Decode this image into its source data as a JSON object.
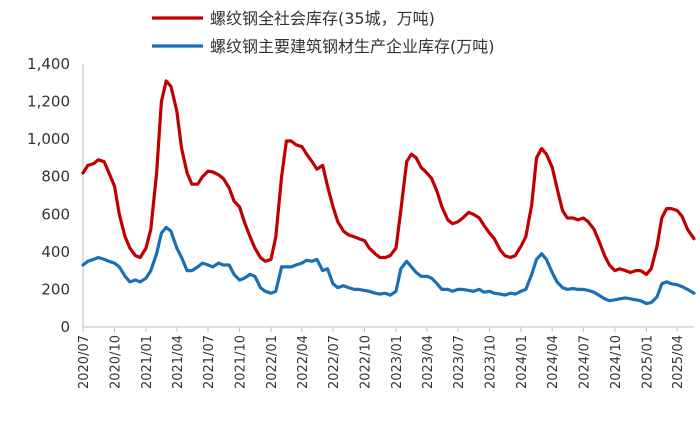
{
  "chart_data": {
    "type": "line",
    "ylim": [
      0,
      1400
    ],
    "yticks": [
      "0",
      "200",
      "400",
      "600",
      "800",
      "1,000",
      "1,200",
      "1,400"
    ],
    "xticks": [
      "2020/07",
      "2020/10",
      "2021/01",
      "2021/04",
      "2021/07",
      "2021/10",
      "2022/01",
      "2022/04",
      "2022/07",
      "2022/10",
      "2023/01",
      "2023/04",
      "2023/07",
      "2023/10",
      "2024/01",
      "2024/04",
      "2024/07",
      "2024/10",
      "2025/01",
      "2025/04"
    ],
    "xlim": [
      "2020-07-01",
      "2025-05-20"
    ],
    "grid": false,
    "legend_position": "top",
    "series": [
      {
        "name": "螺纹钢全社会库存(35城，万吨)",
        "color": "#C00000",
        "points": [
          [
            "2020-07-01",
            820
          ],
          [
            "2020-07-15",
            860
          ],
          [
            "2020-08-01",
            870
          ],
          [
            "2020-08-15",
            890
          ],
          [
            "2020-09-01",
            880
          ],
          [
            "2020-09-15",
            820
          ],
          [
            "2020-10-01",
            750
          ],
          [
            "2020-10-15",
            600
          ],
          [
            "2020-11-01",
            480
          ],
          [
            "2020-11-15",
            420
          ],
          [
            "2020-12-01",
            380
          ],
          [
            "2020-12-15",
            370
          ],
          [
            "2021-01-01",
            420
          ],
          [
            "2021-01-15",
            520
          ],
          [
            "2021-02-01",
            820
          ],
          [
            "2021-02-15",
            1200
          ],
          [
            "2021-03-01",
            1310
          ],
          [
            "2021-03-15",
            1280
          ],
          [
            "2021-04-01",
            1150
          ],
          [
            "2021-04-15",
            950
          ],
          [
            "2021-05-01",
            820
          ],
          [
            "2021-05-15",
            760
          ],
          [
            "2021-06-01",
            760
          ],
          [
            "2021-06-15",
            800
          ],
          [
            "2021-07-01",
            830
          ],
          [
            "2021-07-15",
            825
          ],
          [
            "2021-08-01",
            810
          ],
          [
            "2021-08-15",
            790
          ],
          [
            "2021-09-01",
            740
          ],
          [
            "2021-09-15",
            670
          ],
          [
            "2021-10-01",
            640
          ],
          [
            "2021-10-15",
            560
          ],
          [
            "2021-11-01",
            480
          ],
          [
            "2021-11-15",
            420
          ],
          [
            "2021-12-01",
            370
          ],
          [
            "2021-12-15",
            350
          ],
          [
            "2022-01-01",
            360
          ],
          [
            "2022-01-15",
            480
          ],
          [
            "2022-02-01",
            800
          ],
          [
            "2022-02-15",
            990
          ],
          [
            "2022-03-01",
            990
          ],
          [
            "2022-03-15",
            970
          ],
          [
            "2022-04-01",
            960
          ],
          [
            "2022-04-15",
            920
          ],
          [
            "2022-05-01",
            880
          ],
          [
            "2022-05-15",
            840
          ],
          [
            "2022-06-01",
            860
          ],
          [
            "2022-06-15",
            750
          ],
          [
            "2022-07-01",
            640
          ],
          [
            "2022-07-15",
            560
          ],
          [
            "2022-08-01",
            510
          ],
          [
            "2022-08-15",
            490
          ],
          [
            "2022-09-01",
            480
          ],
          [
            "2022-09-15",
            470
          ],
          [
            "2022-10-01",
            460
          ],
          [
            "2022-10-15",
            420
          ],
          [
            "2022-11-01",
            390
          ],
          [
            "2022-11-15",
            370
          ],
          [
            "2022-12-01",
            370
          ],
          [
            "2022-12-15",
            380
          ],
          [
            "2023-01-01",
            420
          ],
          [
            "2023-01-15",
            620
          ],
          [
            "2023-02-01",
            880
          ],
          [
            "2023-02-15",
            920
          ],
          [
            "2023-03-01",
            900
          ],
          [
            "2023-03-15",
            850
          ],
          [
            "2023-04-01",
            820
          ],
          [
            "2023-04-15",
            790
          ],
          [
            "2023-05-01",
            720
          ],
          [
            "2023-05-15",
            640
          ],
          [
            "2023-06-01",
            570
          ],
          [
            "2023-06-15",
            550
          ],
          [
            "2023-07-01",
            560
          ],
          [
            "2023-07-15",
            580
          ],
          [
            "2023-08-01",
            610
          ],
          [
            "2023-08-15",
            600
          ],
          [
            "2023-09-01",
            580
          ],
          [
            "2023-09-15",
            540
          ],
          [
            "2023-10-01",
            500
          ],
          [
            "2023-10-15",
            470
          ],
          [
            "2023-11-01",
            410
          ],
          [
            "2023-11-15",
            380
          ],
          [
            "2023-12-01",
            370
          ],
          [
            "2023-12-15",
            380
          ],
          [
            "2024-01-01",
            430
          ],
          [
            "2024-01-15",
            480
          ],
          [
            "2024-02-01",
            650
          ],
          [
            "2024-02-15",
            900
          ],
          [
            "2024-03-01",
            950
          ],
          [
            "2024-03-15",
            920
          ],
          [
            "2024-04-01",
            850
          ],
          [
            "2024-04-15",
            740
          ],
          [
            "2024-05-01",
            620
          ],
          [
            "2024-05-15",
            580
          ],
          [
            "2024-06-01",
            580
          ],
          [
            "2024-06-15",
            570
          ],
          [
            "2024-07-01",
            580
          ],
          [
            "2024-07-15",
            560
          ],
          [
            "2024-08-01",
            520
          ],
          [
            "2024-08-15",
            460
          ],
          [
            "2024-09-01",
            380
          ],
          [
            "2024-09-15",
            330
          ],
          [
            "2024-10-01",
            300
          ],
          [
            "2024-10-15",
            310
          ],
          [
            "2024-11-01",
            300
          ],
          [
            "2024-11-15",
            290
          ],
          [
            "2024-12-01",
            300
          ],
          [
            "2024-12-15",
            300
          ],
          [
            "2025-01-01",
            280
          ],
          [
            "2025-01-15",
            310
          ],
          [
            "2025-02-01",
            430
          ],
          [
            "2025-02-15",
            580
          ],
          [
            "2025-03-01",
            630
          ],
          [
            "2025-03-15",
            630
          ],
          [
            "2025-04-01",
            620
          ],
          [
            "2025-04-15",
            590
          ],
          [
            "2025-05-01",
            520
          ],
          [
            "2025-05-20",
            470
          ]
        ]
      },
      {
        "name": "螺纹钢主要建筑钢材生产企业库存(万吨)",
        "color": "#1B6FB5",
        "points": [
          [
            "2020-07-01",
            330
          ],
          [
            "2020-07-15",
            350
          ],
          [
            "2020-08-01",
            360
          ],
          [
            "2020-08-15",
            370
          ],
          [
            "2020-09-01",
            360
          ],
          [
            "2020-09-15",
            350
          ],
          [
            "2020-10-01",
            340
          ],
          [
            "2020-10-15",
            320
          ],
          [
            "2020-11-01",
            270
          ],
          [
            "2020-11-15",
            240
          ],
          [
            "2020-12-01",
            250
          ],
          [
            "2020-12-15",
            240
          ],
          [
            "2021-01-01",
            260
          ],
          [
            "2021-01-15",
            300
          ],
          [
            "2021-02-01",
            390
          ],
          [
            "2021-02-15",
            500
          ],
          [
            "2021-03-01",
            530
          ],
          [
            "2021-03-15",
            510
          ],
          [
            "2021-04-01",
            420
          ],
          [
            "2021-04-15",
            370
          ],
          [
            "2021-05-01",
            300
          ],
          [
            "2021-05-15",
            300
          ],
          [
            "2021-06-01",
            320
          ],
          [
            "2021-06-15",
            340
          ],
          [
            "2021-07-01",
            330
          ],
          [
            "2021-07-15",
            320
          ],
          [
            "2021-08-01",
            340
          ],
          [
            "2021-08-15",
            330
          ],
          [
            "2021-09-01",
            330
          ],
          [
            "2021-09-15",
            280
          ],
          [
            "2021-10-01",
            250
          ],
          [
            "2021-10-15",
            260
          ],
          [
            "2021-11-01",
            280
          ],
          [
            "2021-11-15",
            270
          ],
          [
            "2021-12-01",
            210
          ],
          [
            "2021-12-15",
            190
          ],
          [
            "2022-01-01",
            180
          ],
          [
            "2022-01-15",
            190
          ],
          [
            "2022-02-01",
            320
          ],
          [
            "2022-02-15",
            320
          ],
          [
            "2022-03-01",
            320
          ],
          [
            "2022-03-15",
            330
          ],
          [
            "2022-04-01",
            340
          ],
          [
            "2022-04-15",
            355
          ],
          [
            "2022-05-01",
            350
          ],
          [
            "2022-05-15",
            360
          ],
          [
            "2022-06-01",
            300
          ],
          [
            "2022-06-15",
            310
          ],
          [
            "2022-07-01",
            230
          ],
          [
            "2022-07-15",
            210
          ],
          [
            "2022-08-01",
            220
          ],
          [
            "2022-08-15",
            210
          ],
          [
            "2022-09-01",
            200
          ],
          [
            "2022-09-15",
            200
          ],
          [
            "2022-10-01",
            195
          ],
          [
            "2022-10-15",
            190
          ],
          [
            "2022-11-01",
            180
          ],
          [
            "2022-11-15",
            175
          ],
          [
            "2022-12-01",
            180
          ],
          [
            "2022-12-15",
            170
          ],
          [
            "2023-01-01",
            190
          ],
          [
            "2023-01-15",
            310
          ],
          [
            "2023-02-01",
            350
          ],
          [
            "2023-02-15",
            320
          ],
          [
            "2023-03-01",
            290
          ],
          [
            "2023-03-15",
            270
          ],
          [
            "2023-04-01",
            270
          ],
          [
            "2023-04-15",
            260
          ],
          [
            "2023-05-01",
            230
          ],
          [
            "2023-05-15",
            200
          ],
          [
            "2023-06-01",
            200
          ],
          [
            "2023-06-15",
            190
          ],
          [
            "2023-07-01",
            200
          ],
          [
            "2023-07-15",
            200
          ],
          [
            "2023-08-01",
            195
          ],
          [
            "2023-08-15",
            190
          ],
          [
            "2023-09-01",
            200
          ],
          [
            "2023-09-15",
            185
          ],
          [
            "2023-10-01",
            190
          ],
          [
            "2023-10-15",
            180
          ],
          [
            "2023-11-01",
            175
          ],
          [
            "2023-11-15",
            170
          ],
          [
            "2023-12-01",
            180
          ],
          [
            "2023-12-15",
            175
          ],
          [
            "2024-01-01",
            190
          ],
          [
            "2024-01-15",
            200
          ],
          [
            "2024-02-01",
            280
          ],
          [
            "2024-02-15",
            360
          ],
          [
            "2024-03-01",
            390
          ],
          [
            "2024-03-15",
            360
          ],
          [
            "2024-04-01",
            290
          ],
          [
            "2024-04-15",
            240
          ],
          [
            "2024-05-01",
            210
          ],
          [
            "2024-05-15",
            200
          ],
          [
            "2024-06-01",
            205
          ],
          [
            "2024-06-15",
            200
          ],
          [
            "2024-07-01",
            200
          ],
          [
            "2024-07-15",
            195
          ],
          [
            "2024-08-01",
            185
          ],
          [
            "2024-08-15",
            170
          ],
          [
            "2024-09-01",
            150
          ],
          [
            "2024-09-15",
            140
          ],
          [
            "2024-10-01",
            145
          ],
          [
            "2024-10-15",
            150
          ],
          [
            "2024-11-01",
            155
          ],
          [
            "2024-11-15",
            150
          ],
          [
            "2024-12-01",
            145
          ],
          [
            "2024-12-15",
            140
          ],
          [
            "2025-01-01",
            125
          ],
          [
            "2025-01-15",
            130
          ],
          [
            "2025-02-01",
            160
          ],
          [
            "2025-02-15",
            230
          ],
          [
            "2025-03-01",
            240
          ],
          [
            "2025-03-15",
            230
          ],
          [
            "2025-04-01",
            225
          ],
          [
            "2025-04-15",
            215
          ],
          [
            "2025-05-01",
            200
          ],
          [
            "2025-05-20",
            180
          ]
        ]
      }
    ]
  }
}
